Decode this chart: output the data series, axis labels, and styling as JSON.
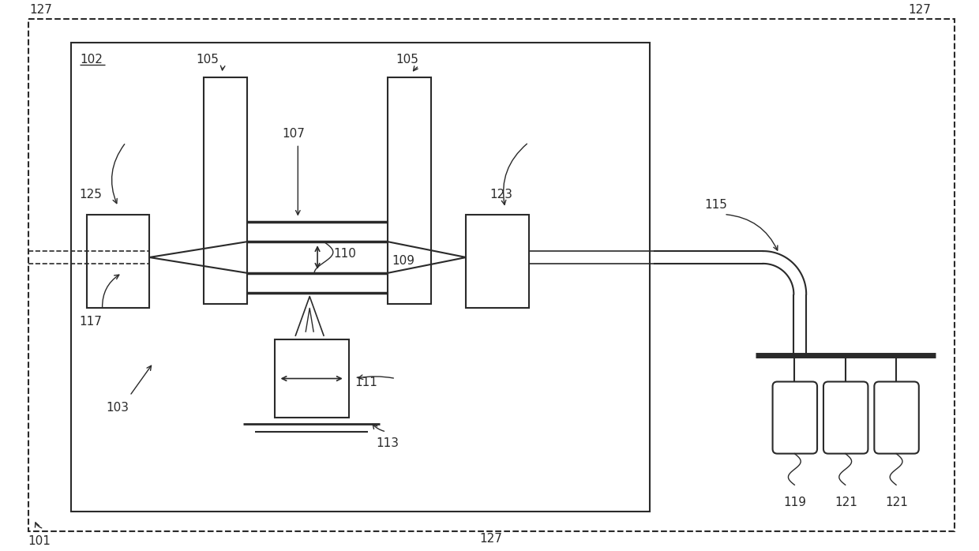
{
  "bg_color": "#ffffff",
  "lc": "#2a2a2a",
  "fig_width": 12.4,
  "fig_height": 6.98,
  "dpi": 100
}
